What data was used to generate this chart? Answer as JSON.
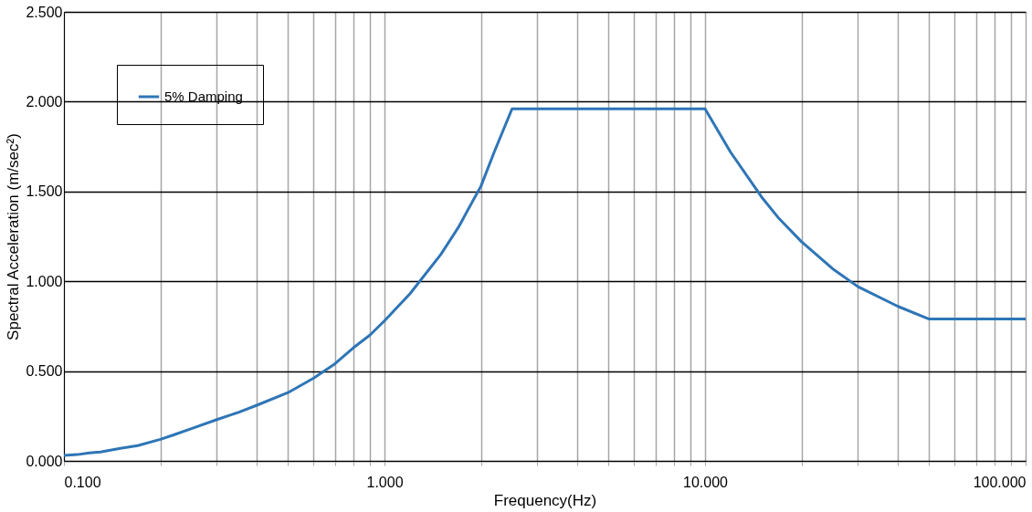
{
  "chart_data": {
    "type": "line",
    "xlabel": "Frequency(Hz)",
    "ylabel": "Spectral Acceleration (m/sec²)",
    "x": [
      0.1,
      0.11,
      0.12,
      0.13,
      0.15,
      0.17,
      0.2,
      0.22,
      0.25,
      0.3,
      0.35,
      0.4,
      0.5,
      0.6,
      0.7,
      0.8,
      0.9,
      1.0,
      1.2,
      1.5,
      1.7,
      2.0,
      2.2,
      2.5,
      10,
      12,
      15,
      17,
      20,
      25,
      30,
      40,
      50,
      100
    ],
    "series": [
      {
        "name": "5% Damping",
        "color": "#2e75b6",
        "values": [
          0.03,
          0.035,
          0.045,
          0.05,
          0.07,
          0.085,
          0.12,
          0.145,
          0.18,
          0.23,
          0.27,
          0.31,
          0.38,
          0.46,
          0.54,
          0.63,
          0.7,
          0.78,
          0.93,
          1.15,
          1.3,
          1.53,
          1.72,
          1.96,
          1.96,
          1.72,
          1.47,
          1.35,
          1.22,
          1.07,
          0.97,
          0.86,
          0.79,
          0.79
        ]
      }
    ],
    "xlim": [
      0.1,
      100
    ],
    "log": "x",
    "xticks": [
      {
        "value": 0.1,
        "label": "0.100"
      },
      {
        "value": 0.2,
        "label": null
      },
      {
        "value": 0.3,
        "label": null
      },
      {
        "value": 0.4,
        "label": null
      },
      {
        "value": 0.5,
        "label": null
      },
      {
        "value": 0.6,
        "label": null
      },
      {
        "value": 0.7,
        "label": null
      },
      {
        "value": 0.8,
        "label": null
      },
      {
        "value": 0.9,
        "label": null
      },
      {
        "value": 1,
        "label": "1.000"
      },
      {
        "value": 2,
        "label": null
      },
      {
        "value": 3,
        "label": null
      },
      {
        "value": 4,
        "label": null
      },
      {
        "value": 5,
        "label": null
      },
      {
        "value": 6,
        "label": null
      },
      {
        "value": 7,
        "label": null
      },
      {
        "value": 8,
        "label": null
      },
      {
        "value": 9,
        "label": null
      },
      {
        "value": 10,
        "label": "10.000"
      },
      {
        "value": 20,
        "label": null
      },
      {
        "value": 30,
        "label": null
      },
      {
        "value": 40,
        "label": null
      },
      {
        "value": 50,
        "label": null
      },
      {
        "value": 60,
        "label": null
      },
      {
        "value": 70,
        "label": null
      },
      {
        "value": 80,
        "label": null
      },
      {
        "value": 90,
        "label": null
      },
      {
        "value": 100,
        "label": "100.000"
      }
    ],
    "ylim": [
      0,
      2.5
    ],
    "yticks": [
      {
        "value": 0,
        "label": "0.000"
      },
      {
        "value": 0.5,
        "label": "0.500"
      },
      {
        "value": 1,
        "label": "1.000"
      },
      {
        "value": 1.5,
        "label": "1.500"
      },
      {
        "value": 2,
        "label": "2.000"
      },
      {
        "value": 2.5,
        "label": "2.500"
      }
    ],
    "grid": true,
    "legend": "top left",
    "marker": "none",
    "line_style": "solid"
  }
}
